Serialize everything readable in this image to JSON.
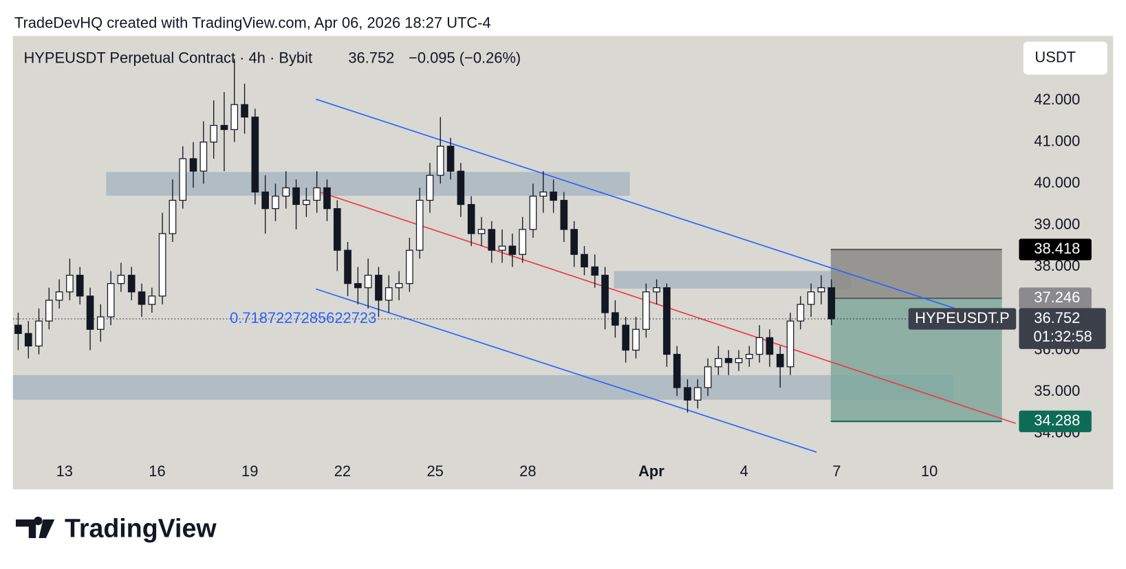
{
  "header": "TradeDevHQ created with TradingView.com, Apr 06, 2026 18:27 UTC-4",
  "chart_data": {
    "type": "candlestick",
    "title": "HYPEUSDT Perpetual Contract · 4h · Bybit",
    "last_price": 36.752,
    "change": "−0.095 (−0.26%)",
    "currency": "USDT",
    "symbol_tag": "HYPEUSDT.P",
    "countdown": "01:32:58",
    "annotation": "0.7187227285622723",
    "up_color": "#ffffff",
    "down_color": "#131722",
    "x": [
      11.5,
      11.83,
      12.17,
      12.5,
      12.83,
      13.17,
      13.5,
      13.83,
      14.17,
      14.5,
      14.83,
      15.17,
      15.5,
      15.83,
      16.17,
      16.5,
      16.83,
      17.17,
      17.5,
      17.83,
      18.17,
      18.5,
      18.83,
      19.17,
      19.5,
      19.83,
      20.17,
      20.5,
      20.83,
      21.17,
      21.5,
      21.83,
      22.17,
      22.5,
      22.83,
      23.17,
      23.5,
      23.83,
      24.17,
      24.5,
      24.83,
      25.17,
      25.5,
      25.83,
      26.17,
      26.5,
      26.83,
      27.17,
      27.5,
      27.83,
      28.17,
      28.5,
      28.83,
      29.17,
      29.5,
      29.83,
      30.17,
      30.5,
      30.83,
      31.17,
      31.5,
      31.83,
      32.17,
      32.5,
      32.83,
      33.17,
      33.5,
      33.83,
      34.17,
      34.5,
      34.83,
      35.17,
      35.5,
      35.83,
      36.17,
      36.5,
      36.83,
      37.17,
      37.5,
      37.83
    ],
    "open": [
      36.6,
      36.4,
      36.1,
      36.7,
      37.2,
      37.4,
      37.8,
      37.3,
      36.5,
      36.8,
      37.6,
      37.8,
      37.4,
      37.1,
      37.3,
      38.8,
      39.6,
      40.6,
      40.3,
      41.0,
      41.4,
      41.3,
      41.9,
      41.6,
      39.8,
      39.4,
      39.7,
      39.9,
      39.5,
      39.6,
      39.9,
      39.4,
      38.4,
      37.6,
      37.5,
      37.8,
      37.2,
      37.5,
      37.6,
      38.4,
      39.6,
      40.2,
      40.9,
      40.3,
      39.5,
      38.8,
      38.9,
      38.4,
      38.5,
      38.3,
      38.9,
      39.7,
      39.8,
      39.6,
      38.9,
      38.3,
      38.0,
      37.8,
      36.9,
      36.6,
      36.0,
      36.5,
      37.4,
      37.5,
      35.9,
      35.1,
      34.8,
      35.1,
      35.6,
      35.8,
      35.7,
      35.8,
      35.9,
      36.3,
      35.9,
      35.6,
      36.7,
      37.1,
      37.4,
      37.5
    ],
    "high": [
      36.9,
      36.7,
      37.0,
      37.5,
      37.7,
      38.2,
      38.0,
      37.5,
      37.1,
      37.9,
      38.1,
      38.0,
      37.6,
      37.5,
      39.3,
      40.1,
      40.9,
      41.0,
      41.5,
      42.0,
      42.2,
      43.0,
      42.4,
      41.8,
      40.2,
      40.0,
      40.3,
      40.1,
      39.9,
      40.3,
      40.1,
      39.6,
      38.6,
      38.0,
      38.2,
      38.0,
      37.8,
      37.9,
      38.7,
      39.9,
      40.5,
      41.6,
      41.1,
      40.5,
      39.7,
      39.2,
      39.1,
      38.9,
      38.8,
      39.2,
      40.0,
      40.3,
      40.1,
      39.8,
      39.1,
      38.5,
      38.3,
      38.0,
      37.2,
      36.8,
      36.8,
      37.6,
      37.7,
      37.6,
      36.1,
      35.3,
      35.3,
      35.8,
      36.1,
      36.0,
      36.0,
      36.1,
      36.6,
      36.5,
      36.1,
      36.9,
      37.3,
      37.6,
      37.8,
      37.7
    ],
    "low": [
      36.0,
      35.8,
      35.9,
      36.5,
      37.0,
      37.2,
      37.1,
      36.0,
      36.2,
      36.6,
      37.4,
      37.2,
      36.8,
      36.9,
      37.1,
      38.6,
      39.4,
      39.9,
      40.0,
      40.6,
      40.3,
      41.0,
      41.2,
      39.5,
      38.8,
      39.1,
      39.4,
      38.9,
      39.2,
      39.3,
      39.1,
      37.9,
      37.3,
      37.1,
      37.0,
      36.8,
      36.9,
      37.2,
      37.4,
      38.2,
      39.3,
      40.0,
      40.1,
      39.2,
      38.5,
      38.5,
      38.1,
      38.1,
      38.0,
      38.1,
      38.7,
      39.3,
      39.3,
      38.6,
      38.0,
      37.8,
      37.5,
      36.5,
      36.3,
      35.7,
      35.8,
      36.3,
      37.1,
      35.6,
      34.9,
      34.5,
      34.6,
      34.9,
      35.4,
      35.4,
      35.5,
      35.6,
      35.7,
      35.6,
      35.1,
      35.4,
      36.5,
      36.8,
      37.1,
      36.6
    ],
    "close": [
      36.4,
      36.1,
      36.7,
      37.2,
      37.4,
      37.8,
      37.3,
      36.5,
      36.8,
      37.6,
      37.8,
      37.4,
      37.1,
      37.3,
      38.8,
      39.6,
      40.6,
      40.3,
      41.0,
      41.4,
      41.3,
      41.9,
      41.6,
      39.8,
      39.4,
      39.7,
      39.9,
      39.5,
      39.6,
      39.9,
      39.4,
      38.4,
      37.6,
      37.5,
      37.8,
      37.2,
      37.5,
      37.6,
      38.4,
      39.6,
      40.2,
      40.9,
      40.3,
      39.5,
      38.8,
      38.9,
      38.4,
      38.5,
      38.3,
      38.9,
      39.7,
      39.8,
      39.6,
      38.9,
      38.3,
      38.0,
      37.8,
      36.9,
      36.6,
      36.0,
      36.5,
      37.4,
      37.5,
      35.9,
      35.1,
      34.8,
      35.1,
      35.6,
      35.8,
      35.7,
      35.8,
      35.9,
      36.3,
      35.9,
      35.6,
      36.7,
      37.1,
      37.4,
      37.5,
      36.752
    ],
    "xlim": [
      11.33,
      43.81
    ],
    "xticks": [
      13,
      16,
      19,
      22,
      25,
      28,
      {
        "value": 32,
        "label": "Apr"
      },
      {
        "value": 35,
        "label": "4"
      },
      {
        "value": 38,
        "label": "7"
      },
      {
        "value": 41,
        "label": "10"
      }
    ],
    "ylim": [
      33.38,
      43.55
    ],
    "yticks": [
      {
        "value": 34,
        "label": "34.000"
      },
      {
        "value": 35,
        "label": "35.000"
      },
      {
        "value": 36,
        "label": "36.000"
      },
      {
        "value": 37,
        "label": "37.000"
      },
      {
        "value": 38,
        "label": "38.000"
      },
      {
        "value": 39,
        "label": "39.000"
      },
      {
        "value": 40,
        "label": "40.000"
      },
      {
        "value": 41,
        "label": "41.000"
      },
      {
        "value": 42,
        "label": "42.000"
      }
    ],
    "position": {
      "stop": 38.418,
      "entry": 37.246,
      "target": 34.288,
      "x": [
        37.81,
        43.35
      ]
    },
    "zones": [
      {
        "x": [
          14.35,
          31.3
        ],
        "y": [
          39.71,
          40.28
        ]
      },
      {
        "x": [
          30.79,
          38.47
        ],
        "y": [
          37.48,
          37.9
        ]
      },
      {
        "x": [
          11.33,
          41.79
        ],
        "y": [
          34.81,
          35.4
        ]
      }
    ],
    "lines": [
      {
        "color": "#2962ff",
        "x": [
          21.14,
          41.84
        ],
        "y": [
          42.03,
          37.0
        ]
      },
      {
        "color": "#2962ff",
        "x": [
          21.14,
          37.35
        ],
        "y": [
          37.47,
          33.55
        ]
      },
      {
        "color": "#f23645",
        "x": [
          21.3,
          43.8
        ],
        "y": [
          39.79,
          34.24
        ]
      }
    ]
  },
  "footer": "TradingView"
}
